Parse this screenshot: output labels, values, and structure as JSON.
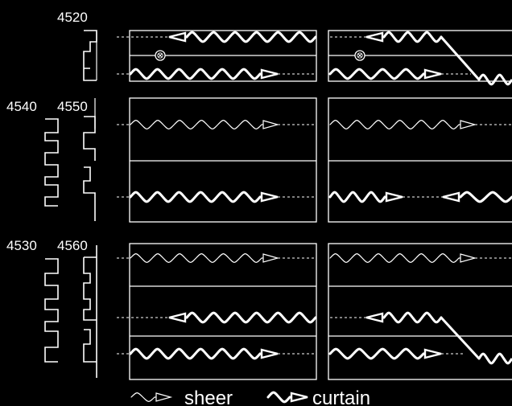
{
  "colors": {
    "background": "#000000",
    "ink": "#ffffff"
  },
  "labels": {
    "l4520": "4520",
    "l4540": "4540",
    "l4550": "4550",
    "l4530": "4530",
    "l4560": "4560"
  },
  "legend": {
    "sheer": "sheer",
    "curtain": "curtain"
  },
  "icons": {
    "wave_thin": "sheer-wave-icon",
    "wave_thick": "curtain-wave-icon",
    "blocker": "circle-x-icon",
    "arrow_open": "open-arrowhead-icon"
  }
}
